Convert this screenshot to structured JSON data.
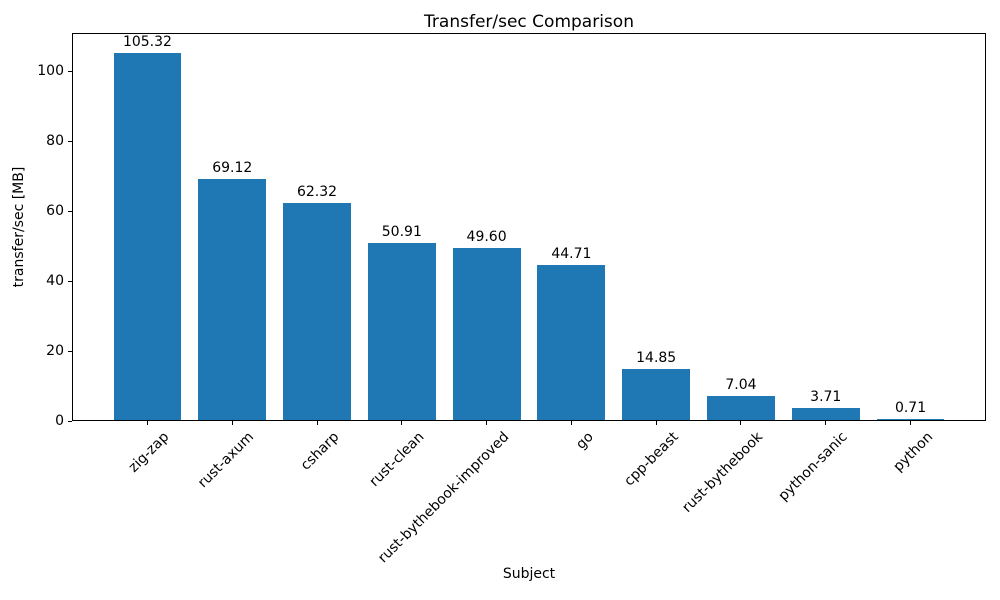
{
  "chart_data": {
    "type": "bar",
    "title": "Transfer/sec Comparison",
    "xlabel": "Subject",
    "ylabel": "transfer/sec [MB]",
    "categories": [
      "zig-zap",
      "rust-axum",
      "csharp",
      "rust-clean",
      "rust-bythebook-improved",
      "go",
      "cpp-beast",
      "rust-bythebook",
      "python-sanic",
      "python"
    ],
    "values": [
      105.32,
      69.12,
      62.32,
      50.91,
      49.6,
      44.71,
      14.85,
      7.04,
      3.71,
      0.71
    ],
    "value_labels": [
      "105.32",
      "69.12",
      "62.32",
      "50.91",
      "49.60",
      "44.71",
      "14.85",
      "7.04",
      "3.71",
      "0.71"
    ],
    "ytick_labels": [
      "0",
      "20",
      "40",
      "60",
      "80",
      "100"
    ],
    "yticks": [
      0,
      20,
      40,
      60,
      80,
      100
    ],
    "ylim": [
      0,
      111
    ],
    "bar_color": "#1f77b4",
    "grid": false,
    "legend": null,
    "x_tick_rotation_deg": 45
  }
}
